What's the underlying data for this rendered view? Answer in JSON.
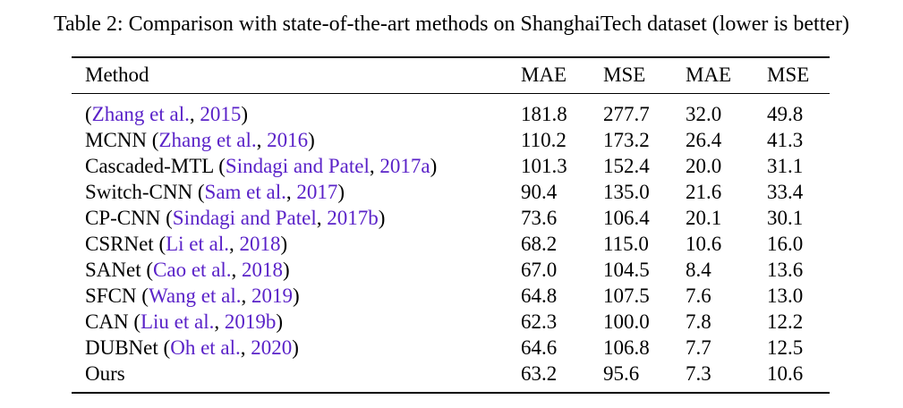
{
  "caption": "Table 2: Comparison with state-of-the-art methods on ShanghaiTech dataset (lower is better)",
  "header": {
    "method": "Method",
    "col1": "MAE",
    "col2": "MSE",
    "col3": "MAE",
    "col4": "MSE"
  },
  "colors": {
    "citation": "#5a22c8",
    "text": "#000000"
  },
  "rows": [
    {
      "name": "",
      "open": "(",
      "cite_author": "Zhang et al.",
      "sep": ", ",
      "cite_year": "2015",
      "close": ")",
      "v1": "181.8",
      "v2": "277.7",
      "v3": "32.0",
      "v4": "49.8"
    },
    {
      "name": "MCNN ",
      "open": "(",
      "cite_author": "Zhang et al.",
      "sep": ", ",
      "cite_year": "2016",
      "close": ")",
      "v1": "110.2",
      "v2": "173.2",
      "v3": "26.4",
      "v4": "41.3"
    },
    {
      "name": "Cascaded-MTL ",
      "open": "(",
      "cite_author": "Sindagi and Patel",
      "sep": ", ",
      "cite_year": "2017a",
      "close": ")",
      "v1": "101.3",
      "v2": "152.4",
      "v3": "20.0",
      "v4": "31.1"
    },
    {
      "name": "Switch-CNN ",
      "open": "(",
      "cite_author": "Sam et al.",
      "sep": ", ",
      "cite_year": "2017",
      "close": ")",
      "v1": "90.4",
      "v2": "135.0",
      "v3": "21.6",
      "v4": "33.4"
    },
    {
      "name": "CP-CNN ",
      "open": "(",
      "cite_author": "Sindagi and Patel",
      "sep": ", ",
      "cite_year": "2017b",
      "close": ")",
      "v1": "73.6",
      "v2": "106.4",
      "v3": "20.1",
      "v4": "30.1"
    },
    {
      "name": "CSRNet ",
      "open": "(",
      "cite_author": "Li et al.",
      "sep": ", ",
      "cite_year": "2018",
      "close": ")",
      "v1": "68.2",
      "v2": "115.0",
      "v3": "10.6",
      "v4": "16.0"
    },
    {
      "name": "SANet ",
      "open": "(",
      "cite_author": "Cao et al.",
      "sep": ", ",
      "cite_year": "2018",
      "close": ")",
      "v1": "67.0",
      "v2": "104.5",
      "v3": "8.4",
      "v4": "13.6"
    },
    {
      "name": "SFCN ",
      "open": "(",
      "cite_author": "Wang et al.",
      "sep": ", ",
      "cite_year": "2019",
      "close": ")",
      "v1": "64.8",
      "v2": "107.5",
      "v3": "7.6",
      "v4": "13.0"
    },
    {
      "name": "CAN ",
      "open": "(",
      "cite_author": "Liu et al.",
      "sep": ", ",
      "cite_year": "2019b",
      "close": ")",
      "v1": "62.3",
      "v2": "100.0",
      "v3": "7.8",
      "v4": "12.2"
    },
    {
      "name": "DUBNet ",
      "open": "(",
      "cite_author": "Oh et al.",
      "sep": ", ",
      "cite_year": "2020",
      "close": ")",
      "v1": "64.6",
      "v2": "106.8",
      "v3": "7.7",
      "v4": "12.5"
    },
    {
      "name": "Ours",
      "open": "",
      "cite_author": "",
      "sep": "",
      "cite_year": "",
      "close": "",
      "v1": "63.2",
      "v2": "95.6",
      "v3": "7.3",
      "v4": "10.6"
    }
  ]
}
